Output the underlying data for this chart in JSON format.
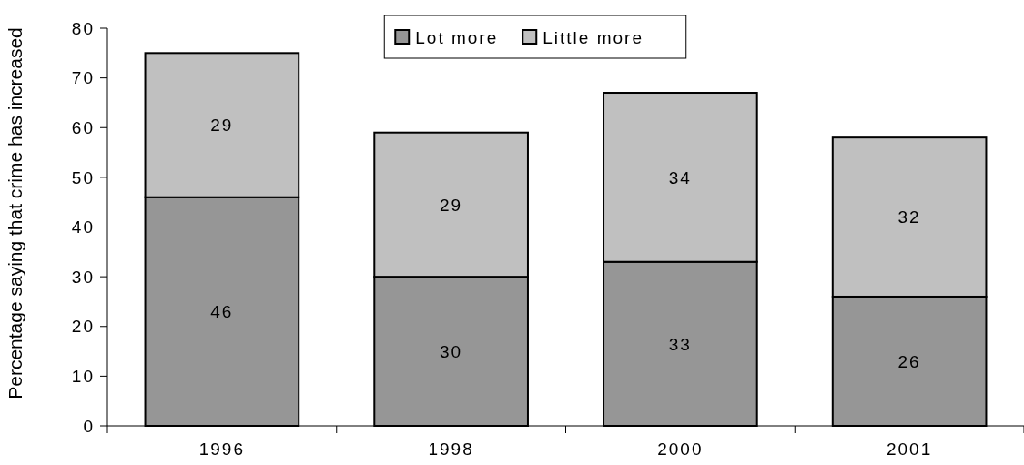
{
  "chart_data": {
    "type": "bar",
    "stacked": true,
    "ylabel": "Percentage saying that crime has increased",
    "categories": [
      "1996",
      "1998",
      "2000",
      "2001"
    ],
    "series": [
      {
        "name": "Lot more",
        "color": "#969696",
        "values": [
          46,
          30,
          33,
          26
        ]
      },
      {
        "name": "Little more",
        "color": "#c0c0c0",
        "values": [
          29,
          29,
          34,
          32
        ]
      }
    ],
    "ylim": [
      0,
      80
    ],
    "yticks": [
      0,
      10,
      20,
      30,
      40,
      50,
      60,
      70,
      80
    ],
    "data_labels": true,
    "legend": "top",
    "grid": false
  }
}
